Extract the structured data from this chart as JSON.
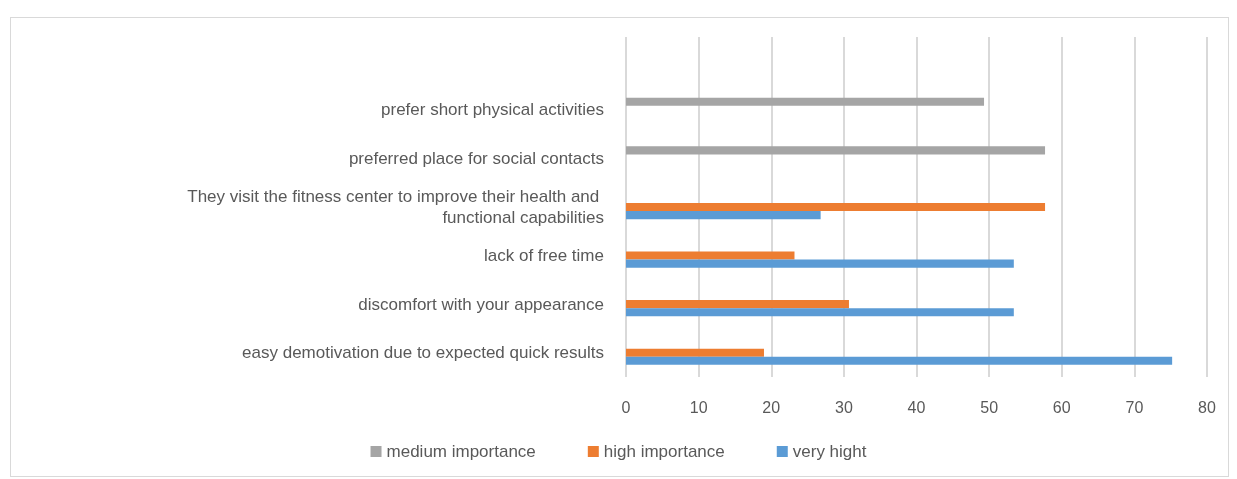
{
  "chart_data": {
    "type": "bar",
    "orientation": "horizontal",
    "categories": [
      null,
      "prefer short physical activities",
      "preferred place for social contacts",
      "They visit the fitness center to improve their health and functional capabilities",
      "lack of free time",
      "discomfort with your appearance",
      "easy demotivation due to expected quick results"
    ],
    "series": [
      {
        "name": "medium importance",
        "color": "#a5a5a5",
        "values": [
          null,
          49.3,
          57.7,
          null,
          null,
          null,
          null
        ]
      },
      {
        "name": "high importance",
        "color": "#ed7d31",
        "values": [
          null,
          null,
          null,
          57.7,
          23.2,
          30.7,
          19.0
        ]
      },
      {
        "name": "very hight",
        "color": "#5b9bd5",
        "values": [
          null,
          null,
          null,
          26.8,
          53.4,
          53.4,
          75.2
        ]
      }
    ],
    "xlim": [
      0,
      80
    ],
    "xticks": [
      0,
      10,
      20,
      30,
      40,
      50,
      60,
      70,
      80
    ],
    "grid": "x",
    "legend": "bottom"
  }
}
